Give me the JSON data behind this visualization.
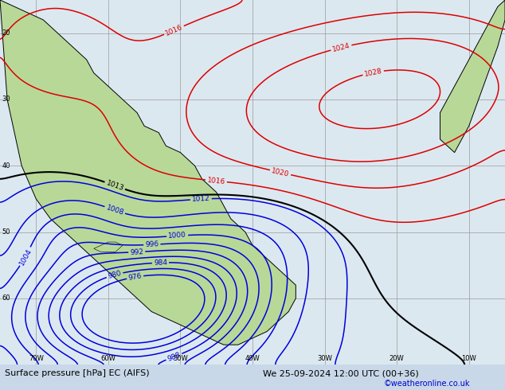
{
  "title_left": "Surface pressure [hPa] EC (AIFS)",
  "title_right": "We 25-09-2024 12:00 UTC (00+36)",
  "credit": "©weatheronline.co.uk",
  "lon_min": -75,
  "lon_max": -5,
  "lat_min": -70,
  "lat_max": -15,
  "background_ocean": "#dce8f0",
  "background_land": "#b8d898",
  "grid_color": "#999999",
  "isobar_blue": "#0000dd",
  "isobar_red": "#dd0000",
  "isobar_black": "#000000",
  "label_fontsize": 6.5,
  "title_fontsize": 8,
  "credit_color": "#0000cc",
  "levels_blue": [
    976,
    980,
    984,
    988,
    992,
    996,
    1000,
    1004,
    1008,
    1012
  ],
  "levels_black": [
    1013
  ],
  "levels_red": [
    1016,
    1020,
    1024,
    1028
  ]
}
